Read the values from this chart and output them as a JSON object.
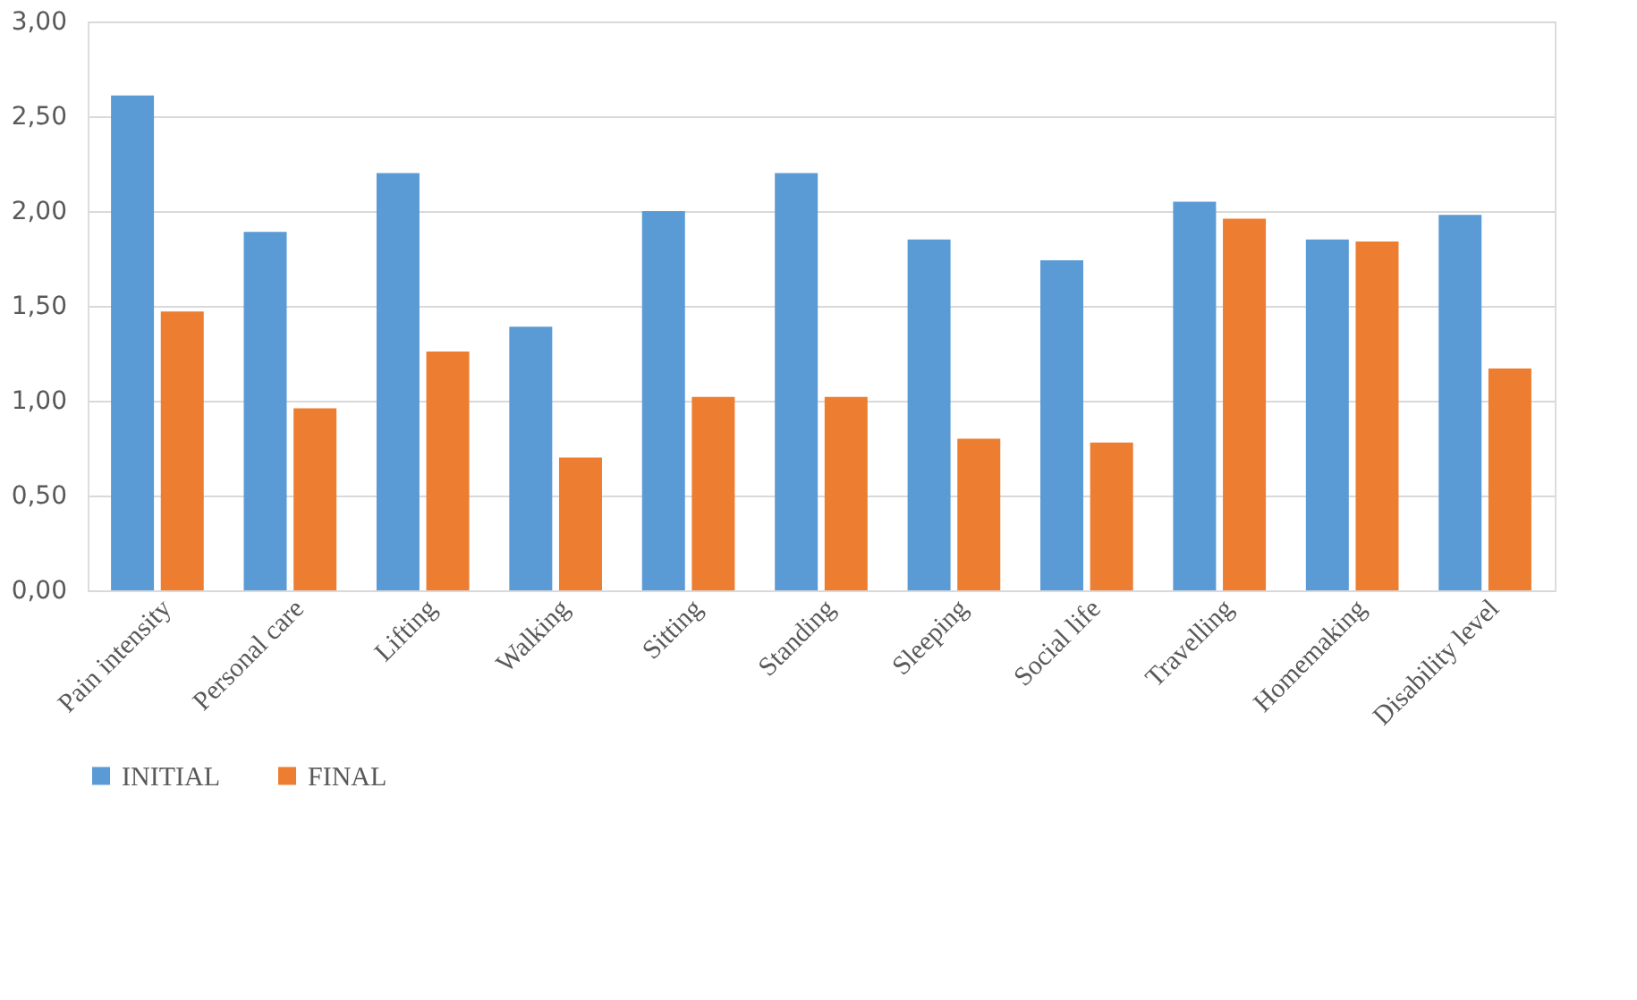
{
  "chart_data": {
    "type": "bar",
    "categories": [
      "Pain intensity",
      "Personal care",
      "Lifting",
      "Walking",
      "Sitting",
      "Standing",
      "Sleeping",
      "Social life",
      "Travelling",
      "Homemaking",
      "Disability level"
    ],
    "series": [
      {
        "name": "INITIAL",
        "color": "#5b9bd5",
        "values": [
          2.61,
          1.89,
          2.2,
          1.39,
          2.0,
          2.2,
          1.85,
          1.74,
          2.05,
          1.85,
          1.98
        ]
      },
      {
        "name": "FINAL",
        "color": "#ed7d31",
        "values": [
          1.47,
          0.96,
          1.26,
          0.7,
          1.02,
          1.02,
          0.8,
          0.78,
          1.96,
          1.84,
          1.17
        ]
      }
    ],
    "ylim": [
      0,
      3
    ],
    "yticks": [
      {
        "value": 0,
        "label": "0,00"
      },
      {
        "value": 0.5,
        "label": "0,50"
      },
      {
        "value": 1,
        "label": "1,00"
      },
      {
        "value": 1.5,
        "label": "1,50"
      },
      {
        "value": 2,
        "label": "2,00"
      },
      {
        "value": 2.5,
        "label": "2,50"
      },
      {
        "value": 3,
        "label": "3,00"
      }
    ],
    "grid": "y",
    "legend": "bottom"
  }
}
